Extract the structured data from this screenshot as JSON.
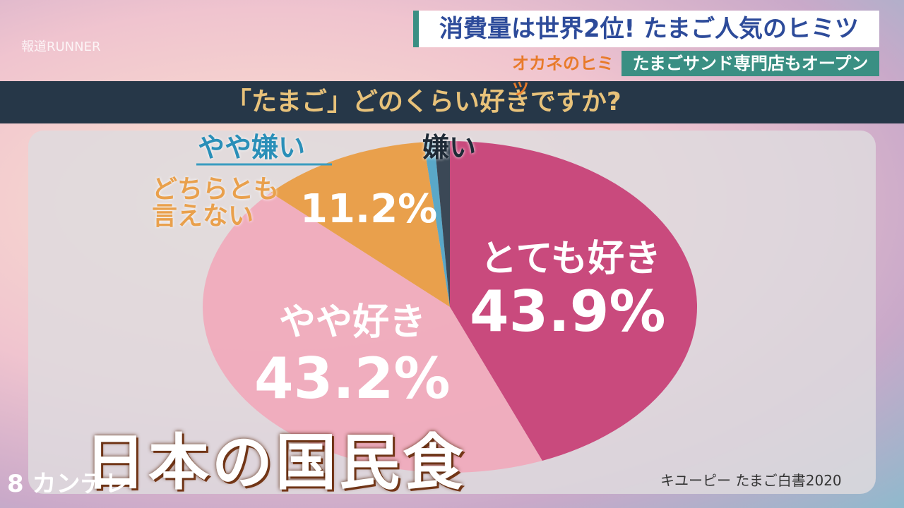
{
  "header": {
    "headline": "消費量は世界2位! たまご人気のヒミツ",
    "corner": "オカネのヒミツ",
    "subline": "たまごサンド専門店もオープン",
    "program": "報道RUNNER"
  },
  "caption": "日本の国民食",
  "station": "8 カンテレ",
  "chart_data": {
    "type": "pie",
    "title": "「たまご」どのくらい好きですか?",
    "categories": [
      "とても好き",
      "やや好き",
      "どちらとも言えない",
      "やや嫌い",
      "嫌い"
    ],
    "values": [
      43.9,
      43.2,
      11.2,
      0.7,
      1.0
    ],
    "value_labels": [
      "43.9%",
      "43.2%",
      "11.2%",
      null,
      null
    ],
    "colors": [
      "#c94a7d",
      "#f2a6b8",
      "#e9a04c",
      "#5aa8c8",
      "#3b4856"
    ],
    "source": "キユーピー たまご白書2020"
  }
}
